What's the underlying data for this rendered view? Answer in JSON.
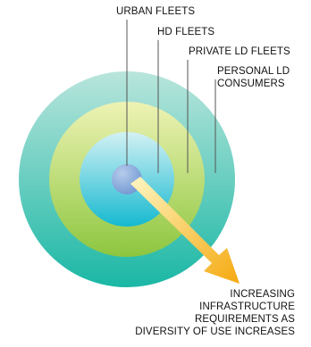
{
  "labels": {
    "urban_fleets": "URBAN FLEETS",
    "hd_fleets": "HD FLEETS",
    "private_ld_fleets": "PRIVATE LD FLEETS",
    "personal_ld_consumers_line1": "PERSONAL LD",
    "personal_ld_consumers_line2": "CONSUMERS",
    "arrow_line1": "INCREASING",
    "arrow_line2": "INFRASTRUCTURE",
    "arrow_line3": "REQUIREMENTS AS",
    "arrow_line4": "DIVERSITY OF USE INCREASES"
  },
  "colors": {
    "ring_outer_light": "#b9e5dc",
    "ring_outer_dark": "#1ab7a5",
    "ring_green_light": "#e9f0a8",
    "ring_green_dark": "#8dc63f",
    "ring_inner_light": "#c9eef2",
    "ring_inner_dark": "#16b9d0",
    "core": "#7fa3d8",
    "arrow_light": "#fff3b0",
    "arrow_dark": "#f7b316",
    "leader_line": "#555555"
  }
}
